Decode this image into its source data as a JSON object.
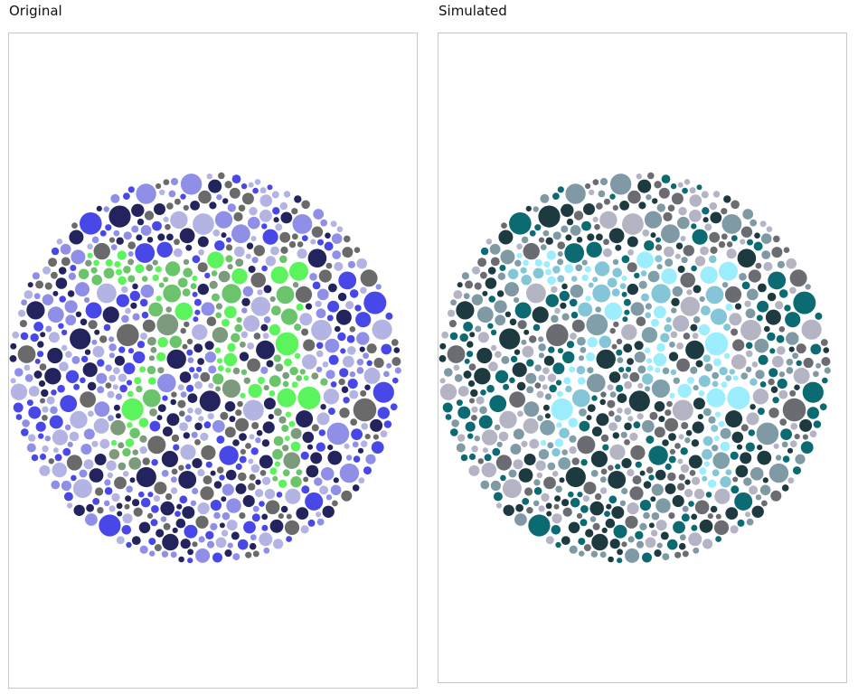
{
  "panels": [
    {
      "id": "original",
      "title": "Original",
      "palette": {
        "background": [
          "#23235e",
          "#6a6a6a",
          "#4848e8",
          "#8f8fe8",
          "#b4b4e4"
        ],
        "figure": [
          "#5cf45c",
          "#6bc46b",
          "#7d9a7d"
        ]
      }
    },
    {
      "id": "simulated",
      "title": "Simulated",
      "palette": {
        "background": [
          "#1c3a40",
          "#6b6b72",
          "#0c6a72",
          "#7f9aa4",
          "#b4b4c4"
        ],
        "figure": [
          "#9ceeff",
          "#84c6d8",
          "#7fa0aa"
        ]
      }
    }
  ],
  "plate_content": "74"
}
